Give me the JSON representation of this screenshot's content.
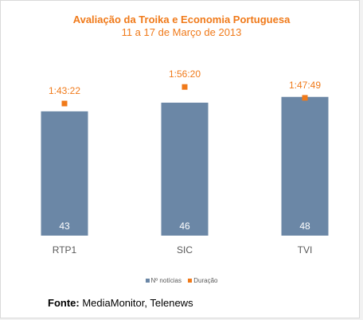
{
  "chart_data": {
    "type": "bar",
    "title": "Avaliação da Troika e Economia Portuguesa",
    "subtitle": "11 a 17 de Março de 2013",
    "categories": [
      "RTP1",
      "SIC",
      "TVI"
    ],
    "series": [
      {
        "name": "Nº notícias",
        "type": "bar",
        "values": [
          43,
          46,
          48
        ],
        "labels": [
          "43",
          "46",
          "48"
        ]
      },
      {
        "name": "Duração",
        "type": "marker",
        "values": [
          103.37,
          116.33,
          107.82
        ],
        "labels": [
          "1:43:22",
          "1:56:20",
          "1:47:49"
        ]
      }
    ],
    "ylim": [
      0,
      65
    ],
    "duration_ylim": [
      0,
      147
    ],
    "grid": false,
    "legend": "bottom-center",
    "colors": {
      "bars": "#6b87a6",
      "markers": "#f07a1a",
      "bar_labels": "#ffffff",
      "marker_labels": "#f07a1a",
      "ticks": "#595959"
    }
  },
  "source": {
    "label": "Fonte:",
    "text": "MediaMonitor, Telenews"
  }
}
